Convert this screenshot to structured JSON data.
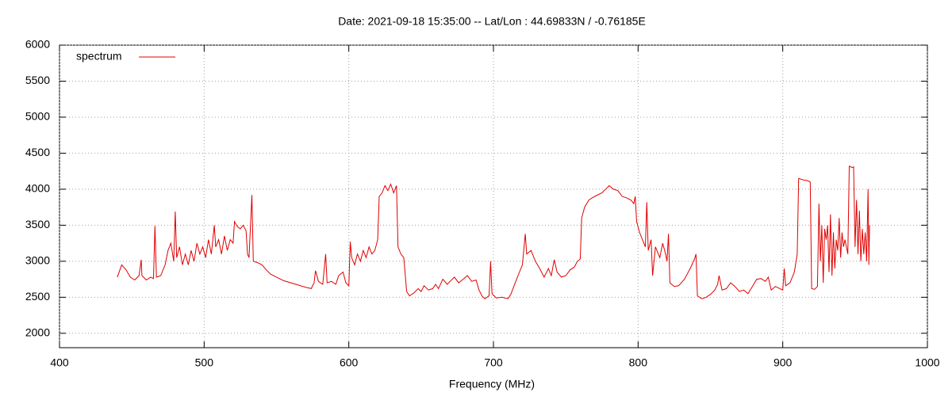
{
  "chart_data": {
    "type": "line",
    "title": "Date: 2021-09-18 15:35:00  --  Lat/Lon : 44.69833N / -0.76185E",
    "x_label": "Frequency (MHz)",
    "xlim": [
      400,
      1000
    ],
    "xticks": [
      400,
      500,
      600,
      700,
      800,
      900,
      1000
    ],
    "ylim": [
      1800,
      6000
    ],
    "yticks": [
      2000,
      2500,
      3000,
      3500,
      4000,
      4500,
      5000,
      5500,
      6000
    ],
    "grid": true,
    "legend": "top-left",
    "series": [
      {
        "name": "spectrum",
        "color": "#e00000",
        "x": [
          440,
          443,
          446,
          449,
          452,
          455,
          456.5,
          457,
          460,
          463,
          465,
          466,
          467,
          470,
          473,
          475,
          477,
          479,
          480,
          481,
          483,
          485,
          487,
          489,
          491,
          493,
          495,
          497,
          499,
          501,
          503,
          505,
          507,
          508,
          510,
          512,
          514,
          516,
          518,
          520,
          521,
          523,
          525,
          527,
          529,
          530,
          531,
          533,
          534,
          537,
          540,
          543,
          546,
          550,
          555,
          560,
          565,
          570,
          574,
          576,
          577,
          579,
          582,
          584,
          585,
          588,
          591,
          593,
          596,
          598,
          600,
          601,
          602,
          604,
          606,
          608,
          610,
          612,
          614,
          616,
          618,
          620,
          621,
          623,
          625,
          627,
          629,
          631,
          633,
          634,
          636,
          638,
          640,
          642,
          645,
          648,
          650,
          652,
          655,
          658,
          660,
          662,
          665,
          668,
          670,
          673,
          676,
          679,
          682,
          685,
          688,
          690,
          692,
          694,
          697,
          698,
          699,
          702,
          706,
          710,
          712,
          715,
          718,
          720,
          722,
          723,
          726,
          729,
          732,
          735,
          738,
          740,
          742,
          744,
          747,
          750,
          753,
          756,
          758,
          760,
          761,
          763,
          766,
          770,
          775,
          780,
          783,
          786,
          789,
          792,
          795,
          797,
          798,
          799,
          801,
          803,
          805,
          806,
          807,
          809,
          810,
          812,
          815,
          817,
          819,
          820,
          821,
          822,
          825,
          828,
          832,
          836,
          839,
          840,
          841,
          844,
          847,
          850,
          853,
          855,
          856,
          858,
          861,
          864,
          867,
          870,
          873,
          876,
          879,
          882,
          885,
          888,
          890,
          892,
          895,
          898,
          900,
          901,
          902,
          905,
          908,
          910,
          911,
          914,
          917,
          919,
          920,
          922,
          924,
          925,
          926,
          927,
          928,
          929,
          930,
          931,
          932,
          933,
          934,
          935,
          936,
          937,
          938,
          939,
          940,
          941,
          942,
          943,
          945,
          946,
          948,
          949,
          950,
          951,
          952,
          953,
          954,
          955,
          956,
          957,
          958,
          959,
          959.5,
          960
        ],
        "values": [
          2780,
          2950,
          2880,
          2780,
          2740,
          2800,
          3020,
          2800,
          2740,
          2780,
          2760,
          3490,
          2780,
          2800,
          2950,
          3150,
          3250,
          3000,
          3690,
          3050,
          3200,
          2950,
          3100,
          2950,
          3150,
          3000,
          3250,
          3100,
          3200,
          3050,
          3300,
          3100,
          3500,
          3200,
          3300,
          3100,
          3350,
          3150,
          3300,
          3250,
          3550,
          3480,
          3450,
          3500,
          3420,
          3100,
          3050,
          3920,
          3000,
          2980,
          2950,
          2880,
          2820,
          2780,
          2730,
          2700,
          2670,
          2640,
          2620,
          2700,
          2870,
          2720,
          2680,
          3100,
          2700,
          2720,
          2680,
          2800,
          2850,
          2700,
          2660,
          3270,
          3050,
          2950,
          3100,
          3000,
          3150,
          3050,
          3200,
          3100,
          3150,
          3300,
          3900,
          3950,
          4050,
          3980,
          4070,
          3950,
          4050,
          3200,
          3100,
          3050,
          2580,
          2520,
          2560,
          2620,
          2580,
          2660,
          2600,
          2620,
          2680,
          2620,
          2750,
          2680,
          2720,
          2780,
          2700,
          2750,
          2800,
          2720,
          2740,
          2600,
          2520,
          2480,
          2520,
          3000,
          2550,
          2490,
          2500,
          2480,
          2540,
          2700,
          2850,
          2950,
          3380,
          3100,
          3150,
          3000,
          2900,
          2780,
          2900,
          2800,
          3020,
          2850,
          2780,
          2800,
          2880,
          2920,
          3000,
          3030,
          3600,
          3750,
          3850,
          3900,
          3950,
          4050,
          4000,
          3980,
          3900,
          3880,
          3850,
          3800,
          3900,
          3550,
          3400,
          3300,
          3200,
          3820,
          3150,
          3300,
          2800,
          3200,
          3050,
          3250,
          3100,
          3000,
          3380,
          2700,
          2650,
          2660,
          2750,
          2900,
          3030,
          3100,
          2520,
          2480,
          2500,
          2540,
          2600,
          2680,
          2800,
          2600,
          2620,
          2700,
          2650,
          2580,
          2600,
          2550,
          2650,
          2750,
          2760,
          2720,
          2780,
          2600,
          2650,
          2620,
          2600,
          2900,
          2660,
          2700,
          2850,
          3100,
          4150,
          4130,
          4120,
          4100,
          2620,
          2610,
          2650,
          3800,
          3000,
          3500,
          2700,
          3450,
          3300,
          3500,
          2850,
          3650,
          2800,
          3400,
          2900,
          3300,
          3150,
          3600,
          3050,
          3400,
          3200,
          3300,
          3100,
          4320,
          4300,
          4310,
          3200,
          3850,
          3100,
          3700,
          3000,
          3450,
          3100,
          3400,
          3000,
          4000,
          2950,
          3500
        ]
      }
    ]
  }
}
